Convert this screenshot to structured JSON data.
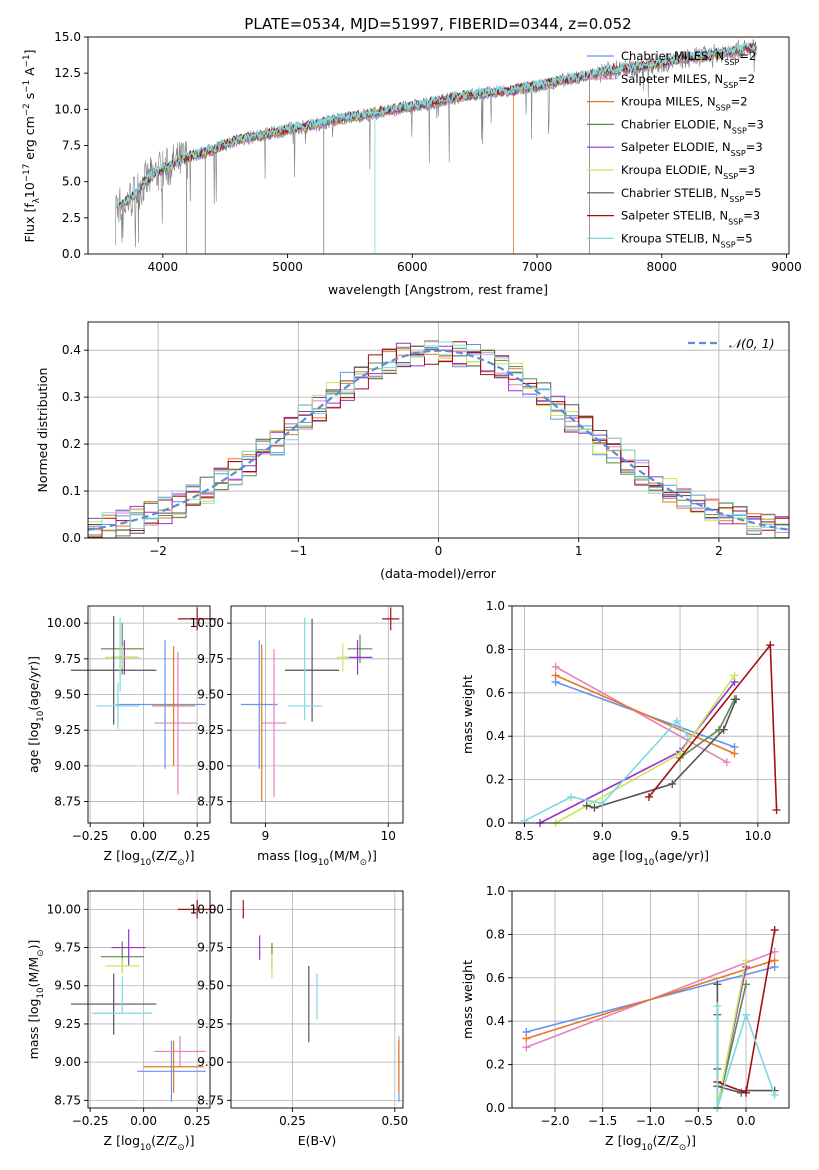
{
  "title": "PLATE=0534, MJD=51997, FIBERID=0344, z=0.052",
  "series": [
    {
      "name": "Chabrier MILES, N",
      "sub": "SSP",
      "tail": "=2",
      "color": "#6495ED"
    },
    {
      "name": "Salpeter MILES, N",
      "sub": "SSP",
      "tail": "=2",
      "color": "#E67FC0"
    },
    {
      "name": "Kroupa MILES, N",
      "sub": "SSP",
      "tail": "=2",
      "color": "#E87722"
    },
    {
      "name": "Chabrier ELODIE, N",
      "sub": "SSP",
      "tail": "=3",
      "color": "#5F8A4F"
    },
    {
      "name": "Salpeter ELODIE, N",
      "sub": "SSP",
      "tail": "=3",
      "color": "#9932CC"
    },
    {
      "name": "Kroupa ELODIE, N",
      "sub": "SSP",
      "tail": "=3",
      "color": "#C8E85A"
    },
    {
      "name": "Chabrier STELIB, N",
      "sub": "SSP",
      "tail": "=5",
      "color": "#555555"
    },
    {
      "name": "Salpeter STELIB, N",
      "sub": "SSP",
      "tail": "=3",
      "color": "#A01010"
    },
    {
      "name": "Kroupa STELIB, N",
      "sub": "SSP",
      "tail": "=5",
      "color": "#7FD8E0"
    }
  ],
  "chart_data": [
    {
      "id": "spectrum",
      "type": "line",
      "xlabel": "wavelength [Angstrom, rest frame]",
      "ylabel_parts": [
        "Flux [f",
        "λ",
        "10",
        "−17",
        " erg cm",
        "−2",
        " s",
        "−1",
        " A",
        "−1",
        "]"
      ],
      "xlim": [
        3400,
        9020
      ],
      "ylim": [
        0,
        15
      ],
      "xticks": [
        4000,
        5000,
        6000,
        7000,
        8000,
        9000
      ],
      "yticks": [
        0.0,
        2.5,
        5.0,
        7.5,
        10.0,
        12.5,
        15.0
      ],
      "grid": false,
      "legend": "upper right",
      "observed_color": "#808080",
      "continuum_x": [
        3650,
        3750,
        3850,
        3950,
        4050,
        4200,
        4400,
        4600,
        4800,
        5000,
        5200,
        5400,
        5600,
        5800,
        6000,
        6200,
        6400,
        6600,
        6800,
        7000,
        7200,
        7400,
        7600,
        7800,
        8000,
        8200,
        8400,
        8600,
        8800
      ],
      "continuum_y": [
        3.3,
        3.9,
        4.9,
        5.6,
        6.0,
        6.7,
        7.2,
        7.9,
        8.2,
        8.6,
        8.9,
        9.3,
        9.6,
        9.9,
        10.2,
        10.5,
        10.9,
        11.1,
        11.3,
        11.6,
        12.0,
        12.3,
        12.7,
        12.9,
        13.2,
        13.5,
        13.8,
        14.1,
        14.3
      ]
    },
    {
      "id": "residuals",
      "type": "line",
      "xlabel": "(data-model)/error",
      "ylabel": "Normed distribution",
      "xlim": [
        -2.5,
        2.5
      ],
      "ylim": [
        0,
        0.46
      ],
      "xticks": [
        -2,
        -1,
        0,
        1,
        2
      ],
      "yticks": [
        0.0,
        0.1,
        0.2,
        0.3,
        0.4
      ],
      "grid": true,
      "legend": "upper right",
      "gauss_label": "𝒩(0, 1)",
      "gauss_color": "#5B8BD9"
    },
    {
      "id": "age_vs_Z",
      "type": "scatter",
      "xlabel_parts": [
        "Z [log",
        "10",
        "(Z/Z",
        "⊙",
        ")]"
      ],
      "ylabel_parts": [
        "age  [log",
        "10",
        "(age/yr)]"
      ],
      "xlim": [
        -0.26,
        0.31
      ],
      "ylim": [
        8.6,
        10.12
      ],
      "xticks": [
        -0.25,
        0.0,
        0.25
      ],
      "yticks": [
        8.75,
        9.0,
        9.25,
        9.5,
        9.75,
        10.0
      ],
      "grid": true,
      "points": [
        {
          "s": 0,
          "x": 0.08,
          "y": 9.43,
          "xe": 0.21,
          "ye": 0.0
        },
        {
          "s": 0,
          "x": 0.1,
          "y": 9.43,
          "xe": 0.0,
          "ye": 0.45
        },
        {
          "s": 1,
          "x": 0.15,
          "y": 9.3,
          "xe": 0.1,
          "ye": 0.0
        },
        {
          "s": 1,
          "x": 0.16,
          "y": 9.3,
          "xe": 0.0,
          "ye": 0.5
        },
        {
          "s": 2,
          "x": 0.14,
          "y": 9.42,
          "xe": 0.1,
          "ye": 0.42
        },
        {
          "s": 3,
          "x": -0.1,
          "y": 9.82,
          "xe": 0.1,
          "ye": 0.18
        },
        {
          "s": 4,
          "x": -0.09,
          "y": 9.76,
          "xe": 0.06,
          "ye": 0.12
        },
        {
          "s": 5,
          "x": -0.1,
          "y": 9.76,
          "xe": 0.08,
          "ye": 0.08
        },
        {
          "s": 6,
          "x": -0.14,
          "y": 9.67,
          "xe": 0.2,
          "ye": 0.38
        },
        {
          "s": 7,
          "x": 0.25,
          "y": 10.03,
          "xe": 0.09,
          "ye": 0.08
        },
        {
          "s": 8,
          "x": -0.12,
          "y": 9.42,
          "xe": 0.1,
          "ye": 0.16
        },
        {
          "s": 8,
          "x": -0.11,
          "y": 9.78,
          "xe": 0.0,
          "ye": 0.26
        }
      ]
    },
    {
      "id": "age_vs_mass",
      "type": "scatter",
      "xlabel_parts": [
        "mass [log",
        "10",
        "(M/M",
        "⊙",
        ")]"
      ],
      "xlim": [
        8.72,
        10.12
      ],
      "ylim": [
        8.6,
        10.12
      ],
      "xticks": [
        9,
        10
      ],
      "yticks": [
        8.75,
        9.0,
        9.25,
        9.5,
        9.75,
        10.0
      ],
      "grid": true,
      "points": [
        {
          "s": 0,
          "x": 8.95,
          "y": 9.43,
          "xe": 0.15,
          "ye": 0.45
        },
        {
          "s": 1,
          "x": 9.07,
          "y": 9.3,
          "xe": 0.1,
          "ye": 0.52
        },
        {
          "s": 2,
          "x": 8.97,
          "y": 9.3,
          "xe": 0.0,
          "ye": 0.55
        },
        {
          "s": 3,
          "x": 9.77,
          "y": 9.82,
          "xe": 0.1,
          "ye": 0.1
        },
        {
          "s": 4,
          "x": 9.75,
          "y": 9.76,
          "xe": 0.12,
          "ye": 0.12
        },
        {
          "s": 5,
          "x": 9.63,
          "y": 9.76,
          "xe": 0.05,
          "ye": 0.1
        },
        {
          "s": 6,
          "x": 9.38,
          "y": 9.67,
          "xe": 0.22,
          "ye": 0.36
        },
        {
          "s": 7,
          "x": 10.02,
          "y": 10.03,
          "xe": 0.07,
          "ye": 0.08
        },
        {
          "s": 8,
          "x": 9.32,
          "y": 9.42,
          "xe": 0.14,
          "ye": 0.0
        },
        {
          "s": 8,
          "x": 9.32,
          "y": 9.68,
          "xe": 0.0,
          "ye": 0.36
        }
      ]
    },
    {
      "id": "mass_weight_vs_age",
      "type": "line",
      "xlabel_parts": [
        "age  [log",
        "10",
        "(age/yr)]"
      ],
      "ylabel": "mass weight",
      "xlim": [
        8.42,
        10.2
      ],
      "ylim": [
        0,
        1
      ],
      "xticks": [
        8.5,
        9.0,
        9.5,
        10.0
      ],
      "yticks": [
        0.0,
        0.2,
        0.4,
        0.6,
        0.8,
        1.0
      ],
      "grid": true,
      "lines": [
        {
          "s": 0,
          "x": [
            8.7,
            9.85
          ],
          "y": [
            0.65,
            0.35
          ]
        },
        {
          "s": 1,
          "x": [
            8.7,
            9.8
          ],
          "y": [
            0.72,
            0.28
          ]
        },
        {
          "s": 2,
          "x": [
            8.7,
            9.85
          ],
          "y": [
            0.68,
            0.32
          ]
        },
        {
          "s": 3,
          "x": [
            9.5,
            9.75,
            9.85
          ],
          "y": [
            0.3,
            0.43,
            0.57
          ]
        },
        {
          "s": 4,
          "x": [
            8.6,
            9.5,
            9.85
          ],
          "y": [
            0.0,
            0.33,
            0.65
          ]
        },
        {
          "s": 5,
          "x": [
            8.7,
            9.5,
            9.85
          ],
          "y": [
            0.0,
            0.32,
            0.68
          ]
        },
        {
          "s": 6,
          "x": [
            8.9,
            8.95,
            9.45,
            9.78,
            9.86
          ],
          "y": [
            0.08,
            0.07,
            0.18,
            0.43,
            0.57
          ]
        },
        {
          "s": 7,
          "x": [
            9.3,
            10.08,
            10.12
          ],
          "y": [
            0.12,
            0.82,
            0.06
          ]
        },
        {
          "s": 8,
          "x": [
            8.5,
            8.8,
            9.0,
            9.48,
            9.55
          ],
          "y": [
            0.01,
            0.12,
            0.09,
            0.47,
            0.4
          ]
        }
      ]
    },
    {
      "id": "mass_vs_Z",
      "type": "scatter",
      "xlabel_parts": [
        "Z [log",
        "10",
        "(Z/Z",
        "⊙",
        ")]"
      ],
      "ylabel_parts": [
        "mass [log",
        "10",
        "(M/M",
        "⊙",
        ")]"
      ],
      "xlim": [
        -0.26,
        0.31
      ],
      "ylim": [
        8.7,
        10.12
      ],
      "xticks": [
        -0.25,
        0.0,
        0.25
      ],
      "yticks": [
        8.75,
        9.0,
        9.25,
        9.5,
        9.75,
        10.0
      ],
      "grid": true,
      "points": [
        {
          "s": 0,
          "x": 0.13,
          "y": 8.94,
          "xe": 0.16,
          "ye": 0.0
        },
        {
          "s": 0,
          "x": 0.13,
          "y": 8.94,
          "xe": 0.0,
          "ye": 0.2
        },
        {
          "s": 1,
          "x": 0.17,
          "y": 9.07,
          "xe": 0.12,
          "ye": 0.1
        },
        {
          "s": 2,
          "x": 0.14,
          "y": 8.97,
          "xe": 0.14,
          "ye": 0.17
        },
        {
          "s": 3,
          "x": -0.1,
          "y": 9.69,
          "xe": 0.1,
          "ye": 0.1
        },
        {
          "s": 4,
          "x": -0.07,
          "y": 9.75,
          "xe": 0.08,
          "ye": 0.12
        },
        {
          "s": 5,
          "x": -0.1,
          "y": 9.63,
          "xe": 0.08,
          "ye": 0.05
        },
        {
          "s": 6,
          "x": -0.14,
          "y": 9.38,
          "xe": 0.2,
          "ye": 0.2
        },
        {
          "s": 7,
          "x": 0.25,
          "y": 10.0,
          "xe": 0.09,
          "ye": 0.06
        },
        {
          "s": 8,
          "x": -0.1,
          "y": 9.32,
          "xe": 0.14,
          "ye": 0.0
        },
        {
          "s": 8,
          "x": -0.1,
          "y": 9.44,
          "xe": 0.0,
          "ye": 0.12
        }
      ]
    },
    {
      "id": "mass_vs_EBV",
      "type": "scatter",
      "xlabel": "E(B-V)",
      "xlim": [
        0.1,
        0.52
      ],
      "ylim": [
        8.7,
        10.12
      ],
      "xticks": [
        0.25,
        0.5
      ],
      "yticks": [
        8.75,
        9.0,
        9.25,
        9.5,
        9.75,
        10.0
      ],
      "grid": true,
      "points": [
        {
          "s": 0,
          "x": 0.51,
          "y": 8.94,
          "xe": 0.0,
          "ye": 0.2
        },
        {
          "s": 1,
          "x": 0.51,
          "y": 9.07,
          "xe": 0.0,
          "ye": 0.1
        },
        {
          "s": 2,
          "x": 0.51,
          "y": 8.97,
          "xe": 0.0,
          "ye": 0.17
        },
        {
          "s": 3,
          "x": 0.2,
          "y": 9.69,
          "xe": 0.0,
          "ye": 0.09
        },
        {
          "s": 4,
          "x": 0.17,
          "y": 9.75,
          "xe": 0.0,
          "ye": 0.08
        },
        {
          "s": 5,
          "x": 0.2,
          "y": 9.63,
          "xe": 0.0,
          "ye": 0.08
        },
        {
          "s": 6,
          "x": 0.29,
          "y": 9.38,
          "xe": 0.0,
          "ye": 0.25
        },
        {
          "s": 7,
          "x": 0.13,
          "y": 10.0,
          "xe": 0.0,
          "ye": 0.06
        },
        {
          "s": 8,
          "x": 0.31,
          "y": 9.43,
          "xe": 0.0,
          "ye": 0.15
        }
      ]
    },
    {
      "id": "mass_weight_vs_Z",
      "type": "line",
      "xlabel_parts": [
        "Z [log",
        "10",
        "(Z/Z",
        "⊙",
        ")]"
      ],
      "ylabel": "mass weight",
      "xlim": [
        -2.45,
        0.45
      ],
      "ylim": [
        0,
        1
      ],
      "xticks": [
        -2.0,
        -1.5,
        -1.0,
        -0.5,
        0.0
      ],
      "yticks": [
        0.0,
        0.2,
        0.4,
        0.6,
        0.8,
        1.0
      ],
      "grid": true,
      "lines": [
        {
          "s": 0,
          "x": [
            -2.3,
            0.3
          ],
          "y": [
            0.35,
            0.65
          ]
        },
        {
          "s": 1,
          "x": [
            -2.3,
            0.3
          ],
          "y": [
            0.28,
            0.72
          ]
        },
        {
          "s": 2,
          "x": [
            -2.3,
            0.3
          ],
          "y": [
            0.32,
            0.68
          ]
        },
        {
          "s": 3,
          "x": [
            -0.3,
            -0.3,
            0.0
          ],
          "y": [
            0.43,
            0.0,
            0.57
          ]
        },
        {
          "s": 4,
          "x": [
            -0.3,
            -0.3,
            0.0
          ],
          "y": [
            0.0,
            0.0,
            0.65
          ]
        },
        {
          "s": 5,
          "x": [
            -0.3,
            0.0
          ],
          "y": [
            0.0,
            0.68
          ]
        },
        {
          "s": 6,
          "x": [
            -0.3,
            -0.3,
            -0.3,
            -0.05,
            0.0,
            0.3
          ],
          "y": [
            0.57,
            0.18,
            0.1,
            0.07,
            0.08,
            0.08
          ]
        },
        {
          "s": 7,
          "x": [
            -0.3,
            0.0,
            0.3
          ],
          "y": [
            0.12,
            0.07,
            0.82
          ]
        },
        {
          "s": 8,
          "x": [
            -0.3,
            -0.3,
            -0.3,
            0.0,
            0.3
          ],
          "y": [
            0.4,
            0.47,
            0.0,
            0.43,
            0.06
          ]
        }
      ]
    }
  ]
}
